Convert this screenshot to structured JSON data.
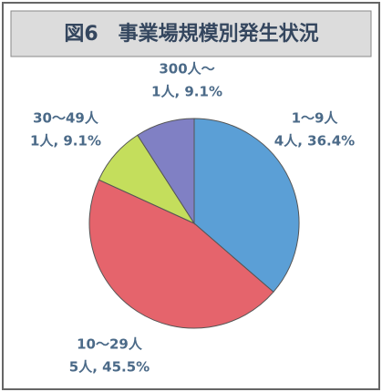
{
  "chart_data": {
    "type": "pie",
    "title": "図6　事業場規模別発生状況",
    "categories": [
      "1～9人",
      "10～29人",
      "30～49人",
      "300人～"
    ],
    "values": [
      36.4,
      45.5,
      9.1,
      9.1
    ],
    "value_labels": [
      "4人, 36.4%",
      "5人, 45.5%",
      "1人, 9.1%",
      "1人, 9.1%"
    ],
    "colors": [
      "#5b9fd6",
      "#e5646c",
      "#c4de5c",
      "#8080c4"
    ]
  }
}
